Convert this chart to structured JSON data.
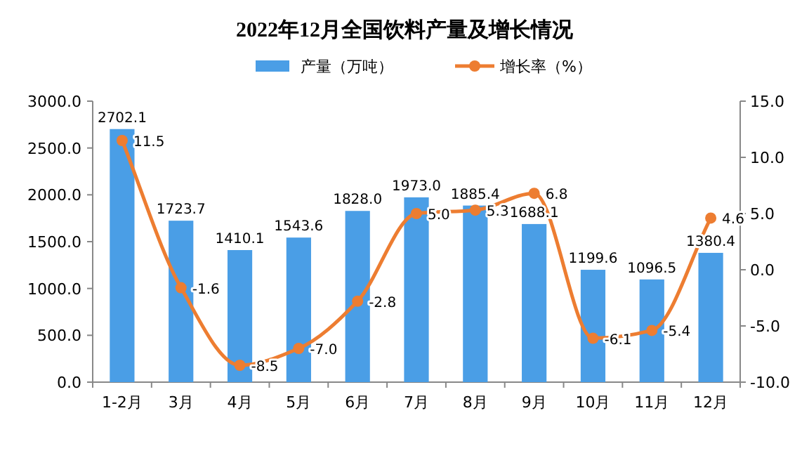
{
  "chart_data": {
    "type": "bar",
    "title": "2022年12月全国饮料产量及增长情况",
    "categories": [
      "1-2月",
      "3月",
      "4月",
      "5月",
      "6月",
      "7月",
      "8月",
      "9月",
      "10月",
      "11月",
      "12月"
    ],
    "series": [
      {
        "name": "产量（万吨）",
        "color": "#4a9ee6",
        "values": [
          2702.1,
          1723.7,
          1410.1,
          1543.6,
          1828.0,
          1973.0,
          1885.4,
          1688.1,
          1199.6,
          1096.5,
          1380.4
        ],
        "value_labels": [
          "2702.1",
          "1723.7",
          "1410.1",
          "1543.6",
          "1828.0",
          "1973.0",
          "1885.4",
          "1688.1",
          "1199.6",
          "1096.5",
          "1380.4"
        ]
      },
      {
        "name": "增长率（%）",
        "type": "line",
        "axis": "y2",
        "color": "#ed7d31",
        "marker": "circle",
        "line_style": "solid",
        "values": [
          11.5,
          -1.6,
          -8.5,
          -7.0,
          -2.8,
          5.0,
          5.3,
          6.8,
          -6.1,
          -5.4,
          4.6
        ],
        "value_labels": [
          "11.5",
          "-1.6",
          "-8.5",
          "-7.0",
          "-2.8",
          "5.0",
          "5.3",
          "6.8",
          "-6.1",
          "-5.4",
          "4.6"
        ]
      }
    ],
    "ylim": [
      0,
      3000
    ],
    "yticks": [
      {
        "value": 0,
        "label": "0.0"
      },
      {
        "value": 500,
        "label": "500.0"
      },
      {
        "value": 1000,
        "label": "1000.0"
      },
      {
        "value": 1500,
        "label": "1500.0"
      },
      {
        "value": 2000,
        "label": "2000.0"
      },
      {
        "value": 2500,
        "label": "2500.0"
      },
      {
        "value": 3000,
        "label": "3000.0"
      }
    ],
    "y2lim": [
      -10,
      15
    ],
    "y2ticks": [
      {
        "value": -10,
        "label": "-10.0"
      },
      {
        "value": -5,
        "label": "-5.0"
      },
      {
        "value": 0,
        "label": "0.0"
      },
      {
        "value": 5,
        "label": "5.0"
      },
      {
        "value": 10,
        "label": "10.0"
      },
      {
        "value": 15,
        "label": "15.0"
      }
    ],
    "legend": "top",
    "grid": false
  }
}
